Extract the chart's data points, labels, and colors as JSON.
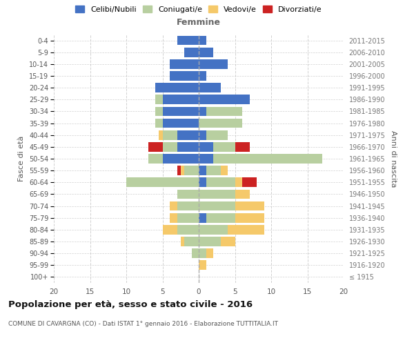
{
  "age_groups": [
    "100+",
    "95-99",
    "90-94",
    "85-89",
    "80-84",
    "75-79",
    "70-74",
    "65-69",
    "60-64",
    "55-59",
    "50-54",
    "45-49",
    "40-44",
    "35-39",
    "30-34",
    "25-29",
    "20-24",
    "15-19",
    "10-14",
    "5-9",
    "0-4"
  ],
  "birth_years": [
    "≤ 1915",
    "1916-1920",
    "1921-1925",
    "1926-1930",
    "1931-1935",
    "1936-1940",
    "1941-1945",
    "1946-1950",
    "1951-1955",
    "1956-1960",
    "1961-1965",
    "1966-1970",
    "1971-1975",
    "1976-1980",
    "1981-1985",
    "1986-1990",
    "1991-1995",
    "1996-2000",
    "2001-2005",
    "2006-2010",
    "2011-2015"
  ],
  "males": {
    "celibi": [
      0,
      0,
      0,
      0,
      0,
      0,
      0,
      0,
      0,
      0,
      5,
      3,
      3,
      5,
      5,
      5,
      6,
      4,
      4,
      2,
      3
    ],
    "coniugati": [
      0,
      0,
      1,
      2,
      3,
      3,
      3,
      3,
      10,
      2,
      2,
      2,
      2,
      1,
      1,
      1,
      0,
      0,
      0,
      0,
      0
    ],
    "vedovi": [
      0,
      0,
      0,
      0.5,
      2,
      1,
      1,
      0,
      0,
      0.5,
      0,
      0,
      0.5,
      0,
      0,
      0,
      0,
      0,
      0,
      0,
      0
    ],
    "divorziati": [
      0,
      0,
      0,
      0,
      0,
      0,
      0,
      0,
      0,
      0.5,
      0,
      2,
      0,
      0,
      0,
      0,
      0,
      0,
      0,
      0,
      0
    ]
  },
  "females": {
    "nubili": [
      0,
      0,
      0,
      0,
      0,
      1,
      0,
      0,
      1,
      1,
      2,
      2,
      1,
      0,
      1,
      7,
      3,
      1,
      4,
      2,
      1
    ],
    "coniugate": [
      0,
      0,
      1,
      3,
      4,
      4,
      5,
      5,
      4,
      2,
      15,
      3,
      3,
      6,
      5,
      0,
      0,
      0,
      0,
      0,
      0
    ],
    "vedove": [
      0,
      1,
      1,
      2,
      5,
      4,
      4,
      2,
      1,
      1,
      0,
      0,
      0,
      0,
      0,
      0,
      0,
      0,
      0,
      0,
      0
    ],
    "divorziate": [
      0,
      0,
      0,
      0,
      0,
      0,
      0,
      0,
      2,
      0,
      0,
      2,
      0,
      0,
      0,
      0,
      0,
      0,
      0,
      0,
      0
    ]
  },
  "colors": {
    "celibi_nubili": "#4472c4",
    "coniugati": "#b8cfa0",
    "vedovi": "#f5c96a",
    "divorziati": "#cc2222"
  },
  "title": "Popolazione per età, sesso e stato civile - 2016",
  "subtitle": "COMUNE DI CAVARGNA (CO) - Dati ISTAT 1° gennaio 2016 - Elaborazione TUTTITALIA.IT",
  "xlabel_right": "Femmine",
  "ylabel_left": "Fasce di età",
  "ylabel_right": "Anni di nascita",
  "xlim": 20,
  "legend_labels": [
    "Celibi/Nubili",
    "Coniugati/e",
    "Vedovi/e",
    "Divorziati/e"
  ],
  "background_color": "#ffffff",
  "grid_color": "#cccccc"
}
